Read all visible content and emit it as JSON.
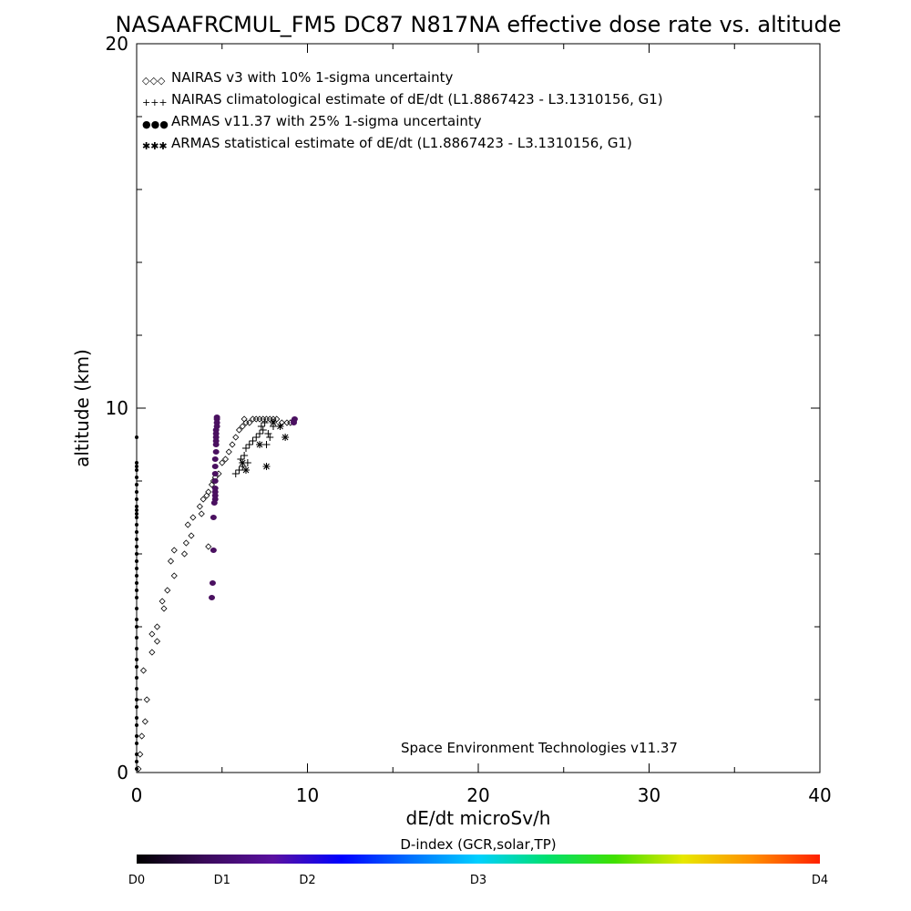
{
  "chart_data": {
    "type": "scatter",
    "title": "NASAAFRCMUL_FM5 DC87 N817NA effective dose rate vs. altitude",
    "xlabel": "dE/dt microSv/h",
    "ylabel": "altitude (km)",
    "xlim": [
      0,
      40
    ],
    "ylim": [
      0,
      20
    ],
    "x_ticks": [
      0,
      10,
      20,
      30,
      40
    ],
    "y_ticks": [
      0,
      10,
      20
    ],
    "grid": false,
    "legend_position": "top-left",
    "credit": "Space Environment Technologies v11.37",
    "legend": [
      {
        "symbol": "◇◇◇",
        "label": "NAIRAS v3 with 10% 1-sigma uncertainty"
      },
      {
        "symbol": "+++",
        "label": "NAIRAS climatological estimate of dE/dt (L1.8867423 - L3.1310156, G1)"
      },
      {
        "symbol": "●●●",
        "label": "ARMAS v11.37 with 25% 1-sigma uncertainty"
      },
      {
        "symbol": "✱✱✱",
        "label": "ARMAS statistical estimate of dE/dt (L1.8867423 - L3.1310156, G1)"
      }
    ],
    "series": [
      {
        "name": "NAIRAS v3 with 10% 1-sigma uncertainty",
        "marker": "diamond",
        "x": [
          0.1,
          0.2,
          0.3,
          0.5,
          0.6,
          0.4,
          0.9,
          1.2,
          0.9,
          1.2,
          1.6,
          1.8,
          1.5,
          2.2,
          2.0,
          2.8,
          2.2,
          2.9,
          3.2,
          3.0,
          3.3,
          3.8,
          3.7,
          3.9,
          4.1,
          4.2,
          4.4,
          4.5,
          4.2,
          4.6,
          4.8,
          5.0,
          5.2,
          5.4,
          5.6,
          5.8,
          6.0,
          6.2,
          6.4,
          6.3,
          6.6,
          6.8,
          7.0,
          7.2,
          7.4,
          7.6,
          7.8,
          8.0,
          8.2,
          8.5,
          8.8,
          9.0
        ],
        "y": [
          0.1,
          0.5,
          1.0,
          1.4,
          2.0,
          2.8,
          3.3,
          3.6,
          3.8,
          4.0,
          4.5,
          5.0,
          4.7,
          5.4,
          5.8,
          6.0,
          6.1,
          6.3,
          6.5,
          6.8,
          7.0,
          7.1,
          7.3,
          7.5,
          7.6,
          7.7,
          7.9,
          8.0,
          6.2,
          8.1,
          8.2,
          8.5,
          8.6,
          8.8,
          9.0,
          9.2,
          9.4,
          9.5,
          9.6,
          9.7,
          9.6,
          9.7,
          9.7,
          9.7,
          9.7,
          9.7,
          9.7,
          9.7,
          9.7,
          9.6,
          9.6,
          9.6
        ]
      },
      {
        "name": "NAIRAS climatological estimate of dE/dt (L1.8867423 - L3.1310156, G1)",
        "marker": "plus",
        "x": [
          5.8,
          6.0,
          6.2,
          6.1,
          6.3,
          6.5,
          6.4,
          6.6,
          6.8,
          7.0,
          7.2,
          7.4,
          7.3,
          7.5,
          7.6,
          7.8,
          7.7,
          8.0
        ],
        "y": [
          8.2,
          8.3,
          8.4,
          8.6,
          8.7,
          8.5,
          8.9,
          9.0,
          9.1,
          9.2,
          9.3,
          9.4,
          9.5,
          9.6,
          9.0,
          9.2,
          9.3,
          9.5
        ]
      },
      {
        "name": "ARMAS v11.37 with 25% 1-sigma uncertainty",
        "marker": "dot",
        "x": [
          4.4,
          4.45,
          4.5,
          4.5,
          4.55,
          4.6,
          4.6,
          4.6,
          4.6,
          4.6,
          4.6,
          4.6,
          4.6,
          4.65,
          4.65,
          4.65,
          4.65,
          4.65,
          4.65,
          4.7,
          4.7,
          4.7,
          4.7,
          9.2,
          9.2,
          9.25
        ],
        "y": [
          4.8,
          5.2,
          6.1,
          7.0,
          7.4,
          7.5,
          7.6,
          7.7,
          7.8,
          8.0,
          8.2,
          8.4,
          8.6,
          8.8,
          9.0,
          9.1,
          9.2,
          9.3,
          9.4,
          9.5,
          9.6,
          9.7,
          9.75,
          9.6,
          9.65,
          9.7
        ]
      },
      {
        "name": "ARMAS statistical estimate of dE/dt (L1.8867423 - L3.1310156, G1)",
        "marker": "asterisk",
        "x": [
          6.2,
          6.4,
          7.2,
          7.6,
          8.0,
          8.4,
          8.7
        ],
        "y": [
          8.5,
          8.3,
          9.0,
          8.4,
          9.6,
          9.5,
          9.2
        ]
      },
      {
        "name": "",
        "marker": "dot-small",
        "x": [
          0.0,
          0.0,
          0.0,
          0.0,
          0.0,
          0.0,
          0.0,
          0.0,
          0.0,
          0.0,
          0.0,
          0.0,
          0.0,
          0.0,
          0.0,
          0.0,
          0.0,
          0.0,
          0.0,
          0.0,
          0.0,
          0.0,
          0.0,
          0.0,
          0.0,
          0.0,
          0.0,
          0.0,
          0.0,
          0.0,
          0.0,
          0.0,
          0.0,
          0.0,
          0.0,
          0.0,
          0.0,
          0.0,
          0.0,
          0.0,
          0.0
        ],
        "y": [
          0.1,
          0.3,
          0.5,
          0.8,
          1.0,
          1.3,
          1.5,
          1.8,
          2.0,
          2.3,
          2.6,
          2.9,
          3.1,
          3.4,
          3.7,
          4.0,
          4.2,
          4.5,
          4.8,
          5.0,
          5.2,
          5.4,
          5.6,
          5.8,
          6.0,
          6.2,
          6.4,
          6.6,
          6.8,
          7.0,
          7.1,
          7.2,
          7.3,
          7.5,
          7.7,
          7.9,
          8.1,
          8.3,
          8.4,
          8.5,
          9.2
        ]
      }
    ],
    "colorbar": {
      "title": "D-index (GCR,solar,TP)",
      "labels": [
        {
          "text": "D0",
          "pos": 0.0
        },
        {
          "text": "D1",
          "pos": 0.125
        },
        {
          "text": "D2",
          "pos": 0.25
        },
        {
          "text": "D3",
          "pos": 0.5
        },
        {
          "text": "D4",
          "pos": 1.0
        }
      ],
      "colors": [
        "#000000",
        "#3a0a5a",
        "#5a10a0",
        "#0000ff",
        "#0070ff",
        "#00d0ff",
        "#00e070",
        "#40e000",
        "#e8e800",
        "#ff9000",
        "#ff2000"
      ]
    },
    "colors": {
      "dose_marker": "#4a1060",
      "black": "#000000"
    }
  }
}
